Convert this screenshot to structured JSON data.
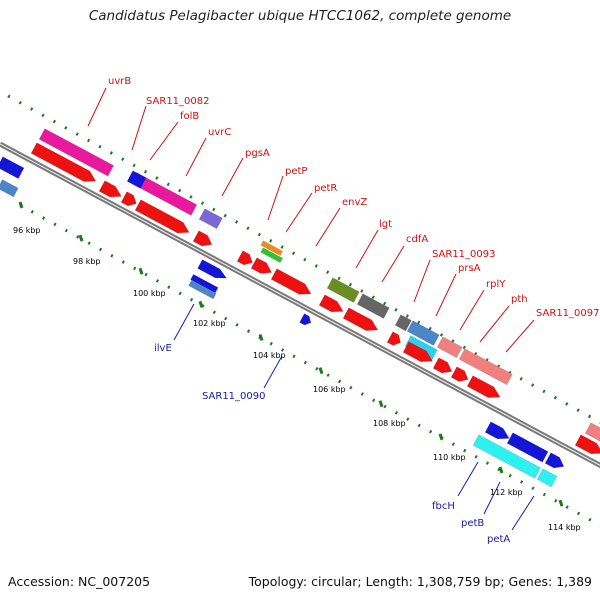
{
  "title": "Candidatus Pelagibacter ubique HTCC1062, complete genome",
  "accession": "Accession: NC_007205",
  "genome_stats": "Topology: circular; Length: 1,308,759 bp; Genes: 1,389",
  "colors": {
    "backbone": "#777777",
    "tick": "#1a7a1a",
    "red_label": "#d01010",
    "blue_label": "#1a1aa8"
  },
  "scale_labels": [
    "96 kbp",
    "98 kbp",
    "100 kbp",
    "102 kbp",
    "104 kbp",
    "106 kbp",
    "108 kbp",
    "110 kbp",
    "112 kbp",
    "114 kbp"
  ],
  "forward_gene_labels": [
    "uvrB",
    "SAR11_0082",
    "folB",
    "uvrC",
    "pgsA",
    "petP",
    "petR",
    "envZ",
    "lgt",
    "cdfA",
    "SAR11_0093",
    "prsA",
    "rplY",
    "pth",
    "SAR11_0097"
  ],
  "reverse_gene_labels": [
    "ilvE",
    "SAR11_0090",
    "fbcH",
    "petB",
    "petA"
  ]
}
